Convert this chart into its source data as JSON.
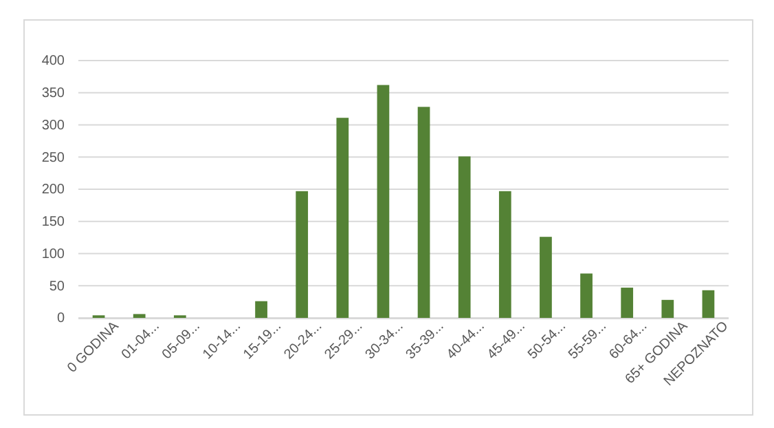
{
  "chart_data": {
    "type": "bar",
    "categories": [
      "0 GODINA",
      "01-04...",
      "05-09...",
      "10-14...",
      "15-19...",
      "20-24...",
      "25-29...",
      "30-34...",
      "35-39...",
      "40-44...",
      "45-49...",
      "50-54...",
      "55-59...",
      "60-64...",
      "65+ GODINA",
      "NEPOZNATO"
    ],
    "values": [
      4,
      6,
      4,
      0,
      26,
      197,
      311,
      362,
      328,
      251,
      197,
      126,
      69,
      47,
      28,
      43
    ],
    "color": "#548235",
    "ylim": [
      0,
      400
    ],
    "yticks": [
      0,
      50,
      100,
      150,
      200,
      250,
      300,
      350,
      400
    ],
    "grid": "y"
  }
}
